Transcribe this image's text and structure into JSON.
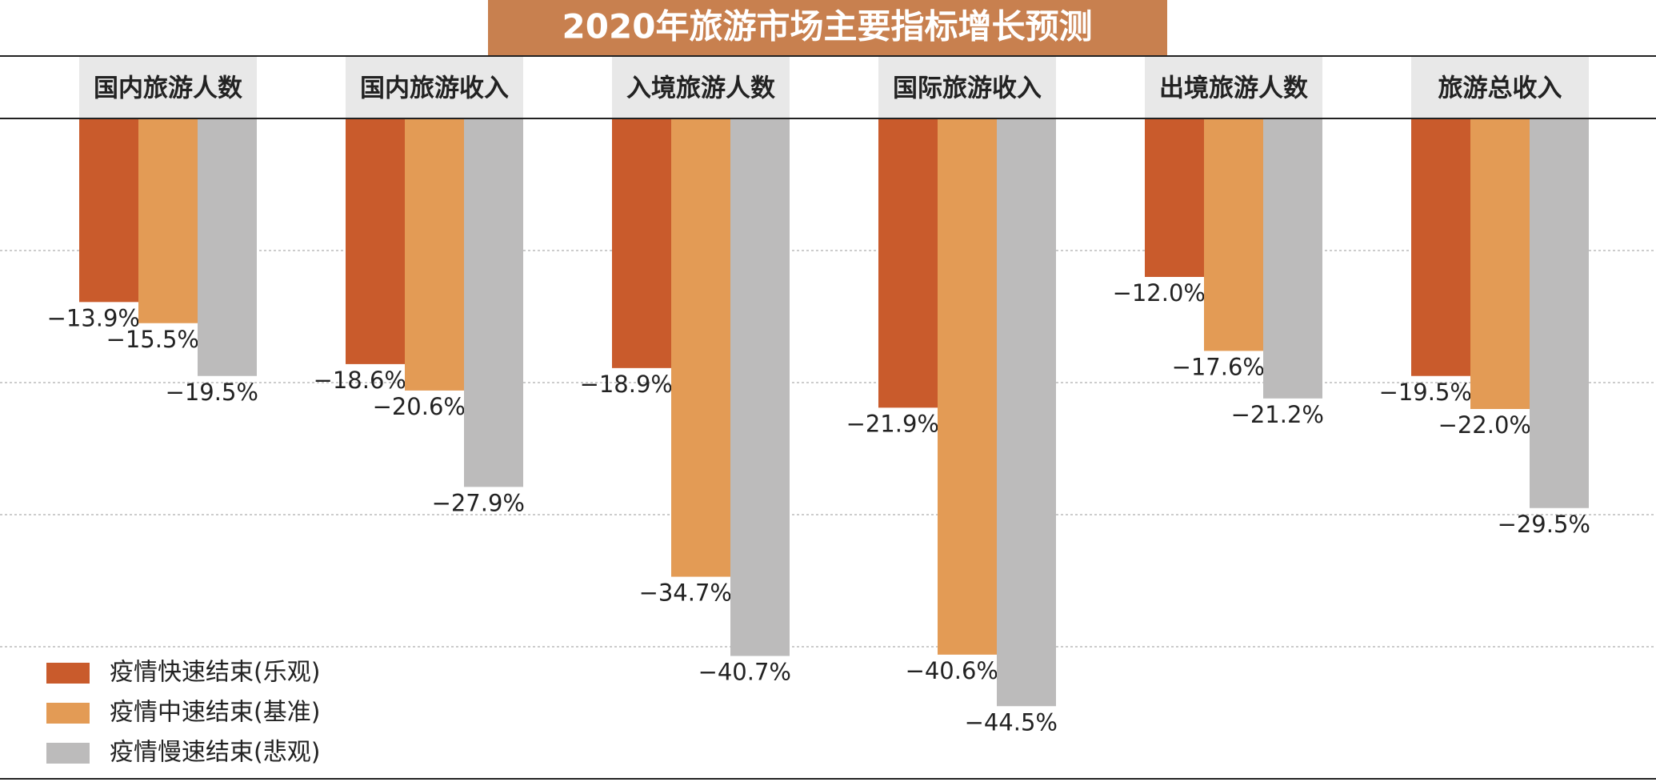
{
  "chart_data": {
    "type": "bar",
    "title": "2020年旅游市场主要指标增长预测",
    "categories": [
      "国内旅游人数",
      "国内旅游收入",
      "入境旅游人数",
      "国际旅游收入",
      "出境旅游人数",
      "旅游总收入"
    ],
    "series": [
      {
        "name": "疫情快速结束(乐观)",
        "color": "#c95b2c",
        "values": [
          -13.9,
          -18.6,
          -18.9,
          -21.9,
          -12.0,
          -19.5
        ],
        "value_labels": [
          "−13.9%",
          "−18.6%",
          "−18.9%",
          "−21.9%",
          "−12.0%",
          "−19.5%"
        ]
      },
      {
        "name": "疫情中速结束(基准)",
        "color": "#e39b55",
        "values": [
          -15.5,
          -20.6,
          -34.7,
          -40.6,
          -17.6,
          -22.0
        ],
        "value_labels": [
          "−15.5%",
          "−20.6%",
          "−34.7%",
          "−40.6%",
          "−17.6%",
          "−22.0%"
        ]
      },
      {
        "name": "疫情慢速结束(悲观)",
        "color": "#bcbbbb",
        "values": [
          -19.5,
          -27.9,
          -40.7,
          -44.5,
          -21.2,
          -29.5
        ],
        "value_labels": [
          "−19.5%",
          "−27.9%",
          "−40.7%",
          "−44.5%",
          "−21.2%",
          "−29.5%"
        ]
      }
    ],
    "ylim": [
      -50,
      0
    ],
    "yticks": [
      -10,
      -20,
      -30,
      -40
    ],
    "grid": true
  }
}
